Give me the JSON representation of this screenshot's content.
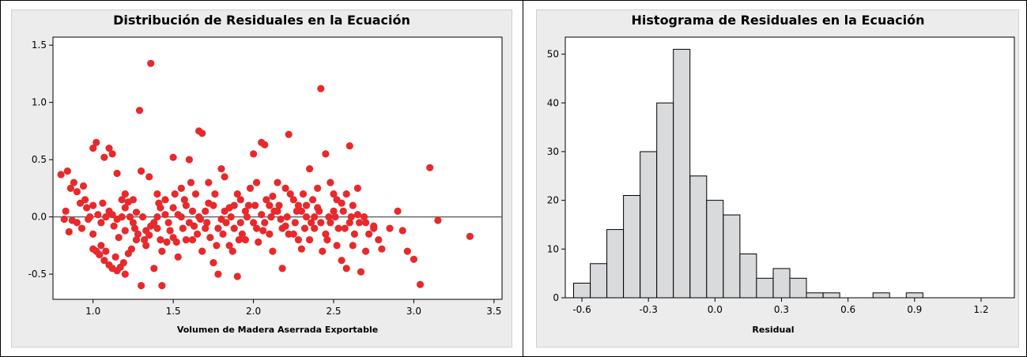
{
  "chart_data": [
    {
      "type": "scatter",
      "title": "Distribución de Residuales en la Ecuación",
      "xlabel": "Volumen de Madera Aserrada Exportable",
      "ylabel": "",
      "xlim": [
        0.75,
        3.55
      ],
      "ylim": [
        -0.72,
        1.57
      ],
      "xticks": [
        1.0,
        1.5,
        2.0,
        2.5,
        3.0,
        3.5
      ],
      "xtick_labels": [
        "1.0",
        "1.5",
        "2.0",
        "2.5",
        "3.0",
        "3.5"
      ],
      "yticks": [
        -0.5,
        0.0,
        0.5,
        1.0,
        1.5
      ],
      "ytick_labels": [
        "-0.5",
        "0.0",
        "0.5",
        "1.0",
        "1.5"
      ],
      "reference_line_y": 0,
      "point_color": "#e8292b",
      "grid": false,
      "points": [
        [
          0.8,
          0.37
        ],
        [
          0.84,
          0.4
        ],
        [
          0.86,
          0.25
        ],
        [
          0.88,
          0.3
        ],
        [
          0.9,
          0.22
        ],
        [
          0.92,
          0.12
        ],
        [
          0.94,
          0.27
        ],
        [
          0.96,
          0.08
        ],
        [
          0.98,
          0.0
        ],
        [
          0.82,
          -0.02
        ],
        [
          0.85,
          -0.13
        ],
        [
          0.9,
          -0.05
        ],
        [
          0.93,
          -0.1
        ],
        [
          0.97,
          -0.02
        ],
        [
          1.0,
          0.6
        ],
        [
          1.02,
          0.65
        ],
        [
          1.07,
          0.52
        ],
        [
          1.1,
          0.6
        ],
        [
          1.12,
          0.55
        ],
        [
          1.15,
          0.38
        ],
        [
          1.18,
          0.15
        ],
        [
          1.2,
          0.2
        ],
        [
          1.22,
          0.13
        ],
        [
          1.0,
          -0.28
        ],
        [
          1.02,
          -0.3
        ],
        [
          1.04,
          -0.33
        ],
        [
          1.05,
          -0.25
        ],
        [
          1.07,
          -0.38
        ],
        [
          1.08,
          -0.3
        ],
        [
          1.1,
          -0.42
        ],
        [
          1.12,
          -0.45
        ],
        [
          1.14,
          -0.35
        ],
        [
          1.15,
          -0.47
        ],
        [
          1.17,
          -0.44
        ],
        [
          1.19,
          -0.4
        ],
        [
          1.2,
          -0.5
        ],
        [
          1.22,
          -0.32
        ],
        [
          1.24,
          -0.28
        ],
        [
          1.0,
          0.1
        ],
        [
          1.03,
          0.02
        ],
        [
          1.05,
          -0.05
        ],
        [
          1.08,
          0.0
        ],
        [
          1.1,
          0.05
        ],
        [
          1.13,
          -0.08
        ],
        [
          1.15,
          -0.02
        ],
        [
          1.18,
          0.0
        ],
        [
          1.2,
          -0.12
        ],
        [
          1.23,
          0.0
        ],
        [
          1.25,
          -0.05
        ],
        [
          1.27,
          0.04
        ],
        [
          1.29,
          0.93
        ],
        [
          1.3,
          -0.6
        ],
        [
          1.32,
          -0.2
        ],
        [
          1.33,
          -0.12
        ],
        [
          1.35,
          -0.16
        ],
        [
          1.36,
          1.34
        ],
        [
          1.38,
          -0.45
        ],
        [
          1.4,
          -0.1
        ],
        [
          1.42,
          -0.2
        ],
        [
          1.43,
          -0.6
        ],
        [
          1.45,
          0.02
        ],
        [
          1.47,
          -0.05
        ],
        [
          1.5,
          0.52
        ],
        [
          1.52,
          -0.22
        ],
        [
          1.55,
          0.25
        ],
        [
          1.58,
          0.1
        ],
        [
          1.6,
          0.5
        ],
        [
          1.62,
          -0.2
        ],
        [
          1.64,
          0.2
        ],
        [
          1.66,
          0.75
        ],
        [
          1.68,
          0.73
        ],
        [
          1.7,
          -0.1
        ],
        [
          1.72,
          0.3
        ],
        [
          1.75,
          -0.4
        ],
        [
          1.78,
          -0.5
        ],
        [
          1.8,
          0.42
        ],
        [
          1.82,
          0.35
        ],
        [
          1.85,
          -0.25
        ],
        [
          1.88,
          -0.1
        ],
        [
          1.9,
          -0.52
        ],
        [
          1.92,
          0.15
        ],
        [
          1.95,
          -0.2
        ],
        [
          2.0,
          0.55
        ],
        [
          2.02,
          -0.1
        ],
        [
          2.05,
          0.65
        ],
        [
          2.07,
          0.63
        ],
        [
          2.1,
          0.1
        ],
        [
          2.12,
          -0.3
        ],
        [
          2.15,
          0.3
        ],
        [
          2.18,
          -0.45
        ],
        [
          2.2,
          0.25
        ],
        [
          2.22,
          0.72
        ],
        [
          2.25,
          -0.15
        ],
        [
          2.28,
          0.1
        ],
        [
          2.3,
          -0.28
        ],
        [
          2.33,
          0.0
        ],
        [
          2.35,
          0.42
        ],
        [
          2.38,
          -0.1
        ],
        [
          2.4,
          0.25
        ],
        [
          2.42,
          1.12
        ],
        [
          2.45,
          0.55
        ],
        [
          2.48,
          -0.05
        ],
        [
          2.5,
          0.2
        ],
        [
          2.52,
          -0.25
        ],
        [
          2.55,
          -0.38
        ],
        [
          2.58,
          -0.45
        ],
        [
          2.6,
          0.62
        ],
        [
          2.62,
          0.1
        ],
        [
          2.65,
          0.25
        ],
        [
          2.67,
          -0.48
        ],
        [
          2.7,
          -0.05
        ],
        [
          2.72,
          -0.15
        ],
        [
          2.75,
          -0.08
        ],
        [
          2.78,
          -0.2
        ],
        [
          2.8,
          -0.28
        ],
        [
          2.85,
          -0.1
        ],
        [
          2.9,
          0.05
        ],
        [
          2.93,
          -0.12
        ],
        [
          2.96,
          -0.3
        ],
        [
          3.0,
          -0.37
        ],
        [
          3.04,
          -0.59
        ],
        [
          3.1,
          0.43
        ],
        [
          3.15,
          -0.03
        ],
        [
          3.35,
          -0.17
        ],
        [
          1.3,
          0.4
        ],
        [
          1.35,
          0.35
        ],
        [
          1.4,
          0.2
        ],
        [
          1.45,
          0.15
        ],
        [
          1.5,
          0.08
        ],
        [
          1.55,
          0.0
        ],
        [
          1.6,
          -0.05
        ],
        [
          1.65,
          -0.15
        ],
        [
          1.7,
          0.05
        ],
        [
          1.75,
          0.1
        ],
        [
          1.8,
          -0.02
        ],
        [
          1.85,
          0.08
        ],
        [
          1.9,
          0.2
        ],
        [
          1.95,
          0.05
        ],
        [
          2.0,
          -0.05
        ],
        [
          2.05,
          0.02
        ],
        [
          2.1,
          -0.15
        ],
        [
          2.15,
          0.05
        ],
        [
          2.2,
          -0.08
        ],
        [
          2.25,
          0.15
        ],
        [
          2.3,
          0.05
        ],
        [
          2.35,
          -0.2
        ],
        [
          2.4,
          0.08
        ],
        [
          2.45,
          -0.15
        ],
        [
          2.5,
          0.05
        ],
        [
          2.55,
          0.12
        ],
        [
          2.6,
          -0.05
        ],
        [
          2.65,
          0.02
        ],
        [
          2.7,
          -0.3
        ],
        [
          2.75,
          -0.1
        ],
        [
          1.28,
          -0.15
        ],
        [
          1.33,
          -0.25
        ],
        [
          1.38,
          -0.05
        ],
        [
          1.43,
          -0.3
        ],
        [
          1.48,
          -0.12
        ],
        [
          1.53,
          -0.35
        ],
        [
          1.58,
          -0.2
        ],
        [
          1.63,
          -0.08
        ],
        [
          1.68,
          -0.3
        ],
        [
          1.73,
          -0.18
        ],
        [
          1.78,
          -0.1
        ],
        [
          1.83,
          -0.05
        ],
        [
          1.88,
          0.1
        ],
        [
          1.93,
          -0.15
        ],
        [
          1.98,
          0.25
        ],
        [
          2.03,
          -0.22
        ],
        [
          2.08,
          0.15
        ],
        [
          2.13,
          0.05
        ],
        [
          2.18,
          -0.1
        ],
        [
          2.23,
          0.2
        ],
        [
          2.28,
          -0.2
        ],
        [
          2.33,
          0.1
        ],
        [
          2.38,
          0.0
        ],
        [
          2.43,
          -0.3
        ],
        [
          2.48,
          0.3
        ],
        [
          2.53,
          -0.1
        ],
        [
          2.58,
          0.2
        ],
        [
          2.63,
          -0.15
        ],
        [
          1.25,
          0.15
        ],
        [
          1.27,
          -0.2
        ],
        [
          1.4,
          0.0
        ],
        [
          1.42,
          0.08
        ],
        [
          1.5,
          -0.18
        ],
        [
          1.53,
          0.02
        ],
        [
          1.57,
          0.15
        ],
        [
          1.62,
          0.05
        ],
        [
          1.67,
          -0.02
        ],
        [
          1.72,
          0.12
        ],
        [
          1.77,
          -0.25
        ],
        [
          1.82,
          0.05
        ],
        [
          1.87,
          -0.3
        ],
        [
          1.92,
          -0.05
        ],
        [
          1.97,
          0.1
        ],
        [
          2.02,
          0.3
        ],
        [
          2.07,
          -0.05
        ],
        [
          2.12,
          0.18
        ],
        [
          2.17,
          -0.02
        ],
        [
          2.22,
          -0.15
        ],
        [
          2.27,
          0.05
        ],
        [
          2.32,
          -0.1
        ],
        [
          2.37,
          0.15
        ],
        [
          2.42,
          -0.05
        ],
        [
          2.47,
          0.0
        ],
        [
          2.52,
          0.15
        ],
        [
          2.57,
          -0.1
        ],
        [
          2.62,
          -0.25
        ],
        [
          0.83,
          0.05
        ],
        [
          0.87,
          -0.03
        ],
        [
          0.95,
          0.15
        ],
        [
          1.0,
          -0.15
        ],
        [
          1.06,
          0.12
        ],
        [
          1.12,
          0.02
        ],
        [
          1.16,
          -0.18
        ],
        [
          1.2,
          0.08
        ],
        [
          1.26,
          -0.1
        ],
        [
          1.31,
          0.0
        ],
        [
          1.36,
          -0.08
        ],
        [
          1.41,
          0.12
        ],
        [
          1.46,
          -0.22
        ],
        [
          1.51,
          0.2
        ],
        [
          1.56,
          -0.1
        ],
        [
          1.61,
          0.3
        ],
        [
          1.66,
          0.0
        ],
        [
          1.71,
          -0.05
        ],
        [
          1.76,
          0.2
        ],
        [
          1.81,
          -0.15
        ],
        [
          1.86,
          0.0
        ],
        [
          1.91,
          -0.2
        ],
        [
          1.96,
          0.0
        ],
        [
          2.01,
          0.1
        ],
        [
          2.06,
          -0.12
        ],
        [
          2.11,
          0.0
        ],
        [
          2.16,
          0.1
        ],
        [
          2.21,
          0.0
        ],
        [
          2.26,
          -0.05
        ],
        [
          2.31,
          0.2
        ],
        [
          2.36,
          -0.05
        ],
        [
          2.41,
          0.05
        ],
        [
          2.46,
          -0.2
        ],
        [
          2.51,
          0.0
        ],
        [
          2.56,
          0.05
        ],
        [
          2.61,
          0.0
        ],
        [
          2.66,
          -0.05
        ],
        [
          2.69,
          0.0
        ]
      ]
    },
    {
      "type": "bar",
      "subtype": "histogram",
      "title": "Histograma de Residuales en la Ecuación",
      "xlabel": "Residual",
      "ylabel": "",
      "xlim": [
        -0.675,
        1.35
      ],
      "ylim": [
        0,
        53.5
      ],
      "bin_width": 0.075,
      "bin_centers": [
        -0.6,
        -0.525,
        -0.45,
        -0.375,
        -0.3,
        -0.225,
        -0.15,
        -0.075,
        0.0,
        0.075,
        0.15,
        0.225,
        0.3,
        0.375,
        0.45,
        0.525,
        0.6,
        0.675,
        0.75,
        0.825,
        0.9,
        0.975,
        1.05,
        1.125,
        1.2,
        1.275
      ],
      "values": [
        3,
        7,
        14,
        21,
        30,
        40,
        51,
        25,
        20,
        17,
        9,
        4,
        6,
        4,
        1,
        1,
        0,
        0,
        1,
        0,
        1,
        0,
        0,
        0,
        0,
        0
      ],
      "xticks": [
        -0.6,
        -0.3,
        0.0,
        0.3,
        0.6,
        0.9,
        1.2
      ],
      "xtick_labels": [
        "-0.6",
        "-0.3",
        "0.0",
        "0.3",
        "0.6",
        "0.9",
        "1.2"
      ],
      "yticks": [
        0,
        10,
        20,
        30,
        40,
        50
      ],
      "ytick_labels": [
        "0",
        "10",
        "20",
        "30",
        "40",
        "50"
      ],
      "bar_color": "#d9dadb",
      "grid": false
    }
  ]
}
